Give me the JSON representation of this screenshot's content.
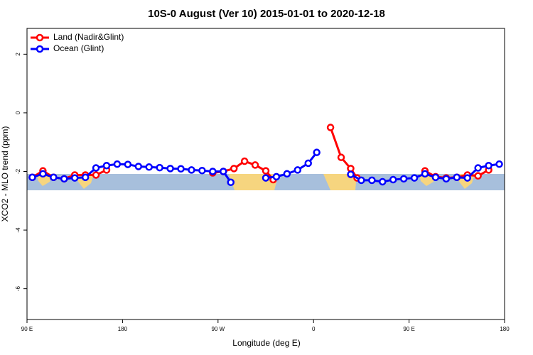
{
  "chart_data": {
    "type": "line",
    "title": "10S-0 August (Ver 10)   2015-01-01 to 2020-12-18",
    "x_label": "Longitude (deg E)",
    "y_label": "XCO2 - MLO trend (ppm)",
    "xlim": [
      90,
      540
    ],
    "ylim": [
      -7.05,
      2.88
    ],
    "xticks": [
      {
        "value": 90,
        "label": "90 E"
      },
      {
        "value": 180,
        "label": "180"
      },
      {
        "value": 270,
        "label": "90 W"
      },
      {
        "value": 360,
        "label": "0"
      },
      {
        "value": 450,
        "label": "90 E"
      },
      {
        "value": 540,
        "label": "180"
      }
    ],
    "yticks": [
      2,
      0,
      -2,
      -4,
      -6
    ],
    "legend": "top-left",
    "series": [
      {
        "name": "Land (Nadir&Glint)",
        "color": "#ff0000",
        "x": [
          95,
          105,
          115,
          125,
          135,
          145,
          155,
          165,
          null,
          265,
          275,
          285,
          295,
          305,
          315,
          322,
          null,
          376,
          386,
          395,
          401,
          null,
          465,
          475,
          485,
          495,
          505,
          515,
          525
        ],
        "values": [
          -2.2,
          -1.98,
          -2.2,
          -2.25,
          -2.12,
          -2.12,
          -2.12,
          -1.95,
          null,
          -2.05,
          -2.0,
          -1.9,
          -1.65,
          -1.78,
          -1.98,
          -2.28,
          null,
          -0.5,
          -1.52,
          -1.9,
          -2.22,
          null,
          -1.98,
          -2.18,
          -2.22,
          -2.2,
          -2.12,
          -2.15,
          -1.95
        ]
      },
      {
        "name": "Ocean (Glint)",
        "color": "#0000ff",
        "x": [
          95,
          105,
          115,
          125,
          135,
          145,
          155,
          165,
          175,
          185,
          195,
          205,
          215,
          225,
          235,
          245,
          255,
          265,
          275,
          282,
          null,
          315,
          325,
          335,
          345,
          355,
          363,
          null,
          395,
          405,
          415,
          425,
          435,
          445,
          455,
          465,
          475,
          485,
          495,
          505,
          515,
          525,
          535
        ],
        "values": [
          -2.2,
          -2.08,
          -2.2,
          -2.25,
          -2.22,
          -2.2,
          -1.88,
          -1.8,
          -1.75,
          -1.76,
          -1.83,
          -1.85,
          -1.87,
          -1.9,
          -1.91,
          -1.95,
          -1.97,
          -2.0,
          -2.0,
          -2.37,
          null,
          -2.22,
          -2.18,
          -2.08,
          -1.95,
          -1.72,
          -1.35,
          null,
          -2.1,
          -2.3,
          -2.3,
          -2.35,
          -2.28,
          -2.25,
          -2.22,
          -2.08,
          -2.2,
          -2.25,
          -2.2,
          -2.22,
          -1.88,
          -1.8,
          -1.75
        ]
      }
    ]
  }
}
